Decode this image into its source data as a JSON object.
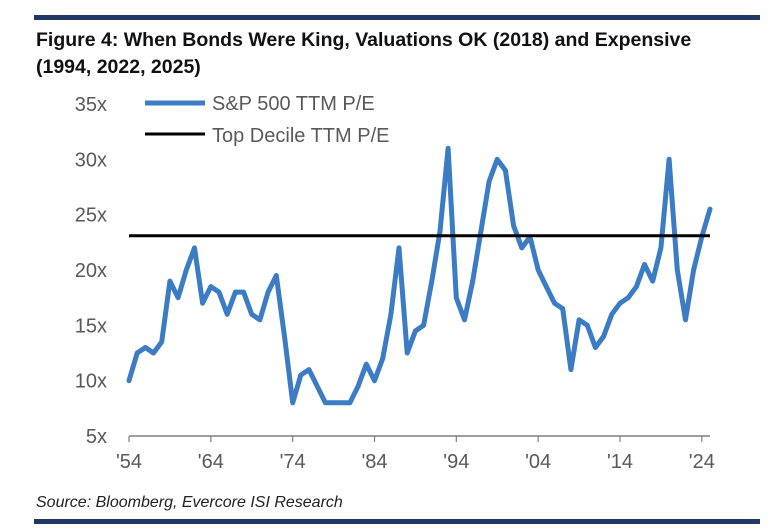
{
  "header": {
    "title": "Figure 4: When Bonds Were King, Valuations OK (2018) and Expensive (1994, 2022, 2025)"
  },
  "footer": {
    "source": "Source: Bloomberg, Evercore ISI Research"
  },
  "chart_data": {
    "type": "line",
    "title": "Figure 4: When Bonds Were King, Valuations OK (2018) and Expensive (1994, 2022, 2025)",
    "xlabel": "",
    "ylabel": "",
    "xlim": [
      1954,
      2025
    ],
    "ylim": [
      5,
      35
    ],
    "x_ticks": [
      1954,
      1964,
      1974,
      1984,
      1994,
      2004,
      2014,
      2024
    ],
    "x_tick_labels": [
      "'54",
      "'64",
      "'74",
      "'84",
      "'94",
      "'04",
      "'14",
      "'24"
    ],
    "y_ticks": [
      5,
      10,
      15,
      20,
      25,
      30,
      35
    ],
    "y_tick_labels": [
      "5x",
      "10x",
      "15x",
      "20x",
      "25x",
      "30x",
      "35x"
    ],
    "legend_position": "top-left",
    "series": [
      {
        "name": "S&P 500 TTM P/E",
        "color": "#3b7cc4",
        "x": [
          1954,
          1955,
          1956,
          1957,
          1958,
          1959,
          1960,
          1961,
          1962,
          1963,
          1964,
          1965,
          1966,
          1967,
          1968,
          1969,
          1970,
          1971,
          1972,
          1973,
          1974,
          1975,
          1976,
          1977,
          1978,
          1979,
          1980,
          1981,
          1982,
          1983,
          1984,
          1985,
          1986,
          1987,
          1988,
          1989,
          1990,
          1991,
          1992,
          1993,
          1994,
          1995,
          1996,
          1997,
          1998,
          1999,
          2000,
          2001,
          2002,
          2003,
          2004,
          2005,
          2006,
          2007,
          2008,
          2009,
          2010,
          2011,
          2012,
          2013,
          2014,
          2015,
          2016,
          2017,
          2018,
          2019,
          2020,
          2021,
          2022,
          2023,
          2024,
          2025
        ],
        "values": [
          10,
          12.5,
          13,
          12.5,
          13.5,
          19,
          17.5,
          20,
          22,
          17,
          18.5,
          18,
          16,
          18,
          18,
          16,
          15.5,
          18,
          19.5,
          14,
          8,
          10.5,
          11,
          9.5,
          8,
          8,
          8,
          8,
          9.5,
          11.5,
          10,
          12,
          16,
          22,
          12.5,
          14.5,
          15,
          19,
          23.5,
          31,
          17.5,
          15.5,
          19,
          23.5,
          28,
          30,
          29,
          24,
          22,
          23,
          20,
          18.5,
          17,
          16.5,
          11,
          15.5,
          15,
          13,
          14,
          16,
          17,
          17.5,
          18.5,
          20.5,
          19,
          22,
          30,
          20,
          15.5,
          20,
          23,
          25.5
        ]
      },
      {
        "name": "Top Decile TTM P/E",
        "color": "#000000",
        "x": [
          1954,
          2025
        ],
        "values": [
          23.1,
          23.1
        ]
      }
    ]
  }
}
